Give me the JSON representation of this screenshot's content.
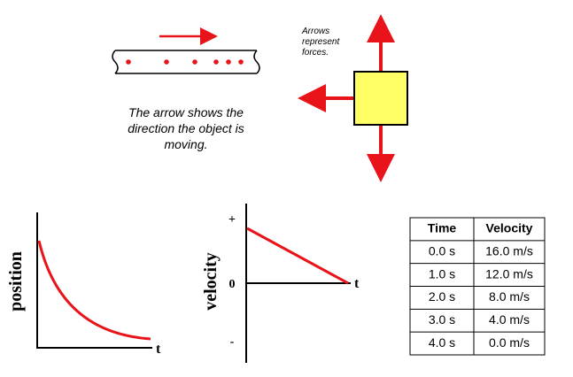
{
  "motion_note": {
    "lines": [
      "The arrow shows the",
      "direction the object is",
      "moving."
    ]
  },
  "force_note": {
    "lines": [
      "Arrows",
      "represent",
      "forces."
    ]
  },
  "position_graph": {
    "y_label": "position",
    "x_label": "t"
  },
  "velocity_graph": {
    "y_label": "velocity",
    "x_label": "t",
    "plus_label": "+",
    "zero_label": "0",
    "minus_label": "-"
  },
  "table": {
    "header": [
      "Time",
      "Velocity"
    ],
    "rows": [
      [
        "0.0 s",
        "16.0 m/s"
      ],
      [
        "1.0 s",
        "12.0 m/s"
      ],
      [
        "2.0 s",
        "8.0 m/s"
      ],
      [
        "3.0 s",
        "4.0 m/s"
      ],
      [
        "4.0 s",
        "0.0 m/s"
      ]
    ]
  }
}
